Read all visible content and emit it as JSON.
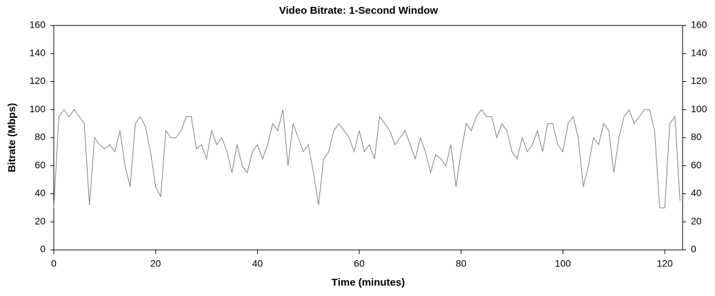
{
  "chart_data": {
    "type": "line",
    "title": "Video Bitrate: 1-Second Window",
    "xlabel": "Time (minutes)",
    "ylabel": "Bitrate (Mbps)",
    "x": [
      0,
      1,
      2,
      3,
      4,
      5,
      6,
      7,
      8,
      9,
      10,
      11,
      12,
      13,
      14,
      15,
      16,
      17,
      18,
      19,
      20,
      21,
      22,
      23,
      24,
      25,
      26,
      27,
      28,
      29,
      30,
      31,
      32,
      33,
      34,
      35,
      36,
      37,
      38,
      39,
      40,
      41,
      42,
      43,
      44,
      45,
      46,
      47,
      48,
      49,
      50,
      51,
      52,
      53,
      54,
      55,
      56,
      57,
      58,
      59,
      60,
      61,
      62,
      63,
      64,
      65,
      66,
      67,
      68,
      69,
      70,
      71,
      72,
      73,
      74,
      75,
      76,
      77,
      78,
      79,
      80,
      81,
      82,
      83,
      84,
      85,
      86,
      87,
      88,
      89,
      90,
      91,
      92,
      93,
      94,
      95,
      96,
      97,
      98,
      99,
      100,
      101,
      102,
      103,
      104,
      105,
      106,
      107,
      108,
      109,
      110,
      111,
      112,
      113,
      114,
      115,
      116,
      117,
      118,
      119,
      120,
      121,
      122,
      123
    ],
    "series": [
      {
        "color": "#808080",
        "values": [
          30,
          95,
          100,
          95,
          100,
          95,
          90,
          32,
          80,
          75,
          72,
          75,
          70,
          85,
          60,
          45,
          90,
          95,
          88,
          70,
          45,
          38,
          85,
          80,
          80,
          85,
          95,
          95,
          72,
          75,
          65,
          85,
          75,
          80,
          70,
          55,
          75,
          60,
          55,
          70,
          75,
          65,
          75,
          90,
          85,
          100,
          60,
          90,
          80,
          70,
          75,
          55,
          32,
          65,
          70,
          85,
          90,
          85,
          80,
          70,
          85,
          70,
          75,
          65,
          95,
          90,
          85,
          75,
          80,
          85,
          75,
          65,
          80,
          70,
          55,
          68,
          65,
          60,
          75,
          45,
          70,
          90,
          85,
          95,
          100,
          95,
          95,
          80,
          90,
          85,
          70,
          65,
          80,
          70,
          75,
          85,
          70,
          90,
          90,
          75,
          70,
          90,
          95,
          80,
          45,
          60,
          80,
          75,
          90,
          85,
          55,
          80,
          95,
          100,
          90,
          95,
          100,
          100,
          85,
          30,
          30,
          90,
          95,
          35
        ]
      }
    ],
    "xlim": [
      0,
      123.5
    ],
    "xticks": [
      0,
      20,
      40,
      60,
      80,
      100,
      120
    ],
    "ylim": [
      0,
      160
    ],
    "yticks": [
      0,
      20,
      40,
      60,
      80,
      100,
      120,
      140,
      160
    ],
    "grid": false
  }
}
